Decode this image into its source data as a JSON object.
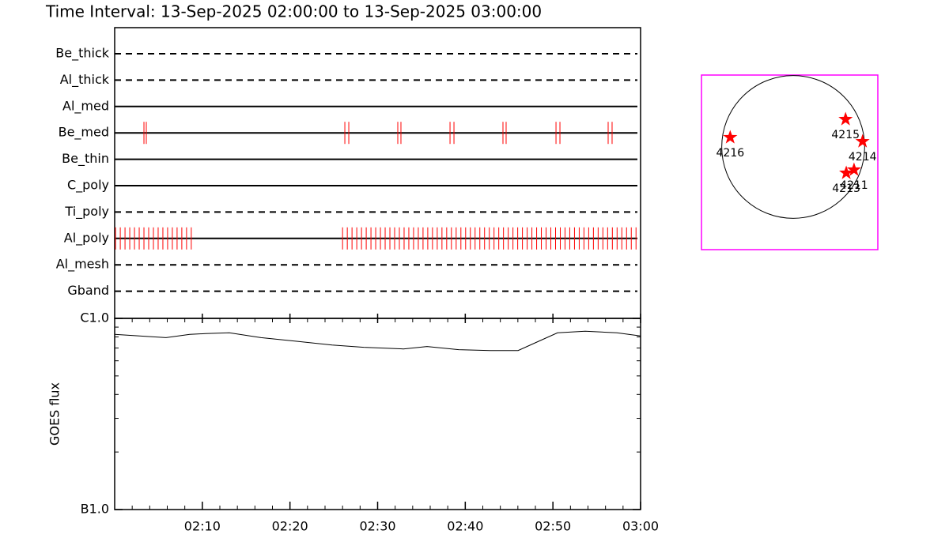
{
  "chart_data": [
    {
      "type": "timeline",
      "title": "Time Interval: 13-Sep-2025 02:00:00 to 13-Sep-2025 03:00:00",
      "xlim": [
        0,
        60
      ],
      "line_color": "#000000",
      "mark_color": "#ff0000",
      "rows": [
        {
          "label": "Be_thick",
          "style": "dashed",
          "times": []
        },
        {
          "label": "Al_thick",
          "style": "dashed",
          "times": []
        },
        {
          "label": "Al_med",
          "style": "solid",
          "times": []
        },
        {
          "label": "Be_med",
          "style": "solid",
          "times": [
            3.34,
            3.61,
            26.26,
            26.71,
            32.3,
            32.66,
            38.26,
            38.71,
            44.3,
            44.66,
            50.35,
            50.8,
            56.3,
            56.75
          ]
        },
        {
          "label": "Be_thin",
          "style": "solid",
          "times": []
        },
        {
          "label": "C_poly",
          "style": "solid",
          "times": []
        },
        {
          "label": "Ti_poly",
          "style": "dashed",
          "times": []
        },
        {
          "label": "Al_poly",
          "style": "solid",
          "times": [
            0.1,
            0.64,
            1.18,
            1.72,
            2.26,
            2.8,
            3.34,
            3.88,
            4.42,
            4.96,
            5.5,
            6.04,
            6.58,
            7.12,
            7.66,
            8.2,
            8.74,
            26.0,
            26.54,
            27.08,
            27.62,
            28.16,
            28.7,
            29.24,
            29.78,
            30.32,
            30.86,
            31.4,
            31.94,
            32.48,
            33.02,
            33.56,
            34.1,
            34.64,
            35.18,
            35.72,
            36.26,
            36.8,
            37.34,
            37.88,
            38.42,
            38.96,
            39.5,
            40.04,
            40.58,
            41.12,
            41.66,
            42.2,
            42.74,
            43.28,
            43.82,
            44.36,
            44.9,
            45.44,
            45.98,
            46.52,
            47.06,
            47.6,
            48.14,
            48.68,
            49.22,
            49.76,
            50.3,
            50.84,
            51.38,
            51.92,
            52.46,
            53.0,
            53.54,
            54.08,
            54.62,
            55.16,
            55.7,
            56.24,
            56.78,
            57.32,
            57.86,
            58.4,
            58.94,
            59.48
          ]
        },
        {
          "label": "Al_mesh",
          "style": "dashed",
          "times": []
        },
        {
          "label": "Gband",
          "style": "dashed",
          "times": []
        }
      ]
    },
    {
      "type": "line",
      "ylabel": "GOES flux",
      "ylog": true,
      "color": "#000000",
      "xlim": [
        0,
        60
      ],
      "xticks": [
        {
          "value": 10,
          "label": "02:10"
        },
        {
          "value": 20,
          "label": "02:20"
        },
        {
          "value": 30,
          "label": "02:30"
        },
        {
          "value": 40,
          "label": "02:40"
        },
        {
          "value": 50,
          "label": "02:50"
        },
        {
          "value": 60,
          "label": "03:00"
        }
      ],
      "xminorticks": [
        2,
        4,
        6,
        8,
        12,
        14,
        16,
        18,
        22,
        24,
        26,
        28,
        32,
        34,
        36,
        38,
        42,
        44,
        46,
        48,
        52,
        54,
        56,
        58
      ],
      "ylim": [
        1e-07,
        1e-06
      ],
      "yticks": [
        {
          "value": 1e-07,
          "label": "B1.0"
        },
        {
          "value": 1e-06,
          "label": "C1.0"
        }
      ],
      "yminorticks": [
        2e-07,
        3e-07,
        4e-07,
        5e-07,
        6e-07,
        7e-07,
        8e-07,
        9e-07
      ],
      "x": [
        0,
        5.86,
        8.57,
        10.38,
        13.08,
        16.69,
        21.2,
        24.81,
        28.42,
        32.93,
        35.64,
        39.25,
        42.86,
        46.02,
        48.27,
        50.53,
        53.68,
        57.29,
        60
      ],
      "values": [
        8.24e-07,
        7.93e-07,
        8.24e-07,
        8.32e-07,
        8.4e-07,
        7.93e-07,
        7.55e-07,
        7.26e-07,
        7.06e-07,
        6.92e-07,
        7.13e-07,
        6.86e-07,
        6.79e-07,
        6.79e-07,
        7.55e-07,
        8.4e-07,
        8.57e-07,
        8.4e-07,
        8.09e-07
      ]
    },
    {
      "type": "map",
      "xlim": [
        -1226,
        1131
      ],
      "ylim": [
        -1230,
        861
      ],
      "disk_radius": 955,
      "box_color": "#ff00ff",
      "disk_color": "#000000",
      "marker_color": "#ff0000",
      "points": [
        {
          "label": "4216",
          "x": -842,
          "y": 114
        },
        {
          "label": "4215",
          "x": 700,
          "y": 331
        },
        {
          "label": "4214",
          "x": 927,
          "y": 66
        },
        {
          "label": "4213",
          "x": 709,
          "y": -312
        },
        {
          "label": "4211",
          "x": 813,
          "y": -274
        }
      ]
    }
  ]
}
